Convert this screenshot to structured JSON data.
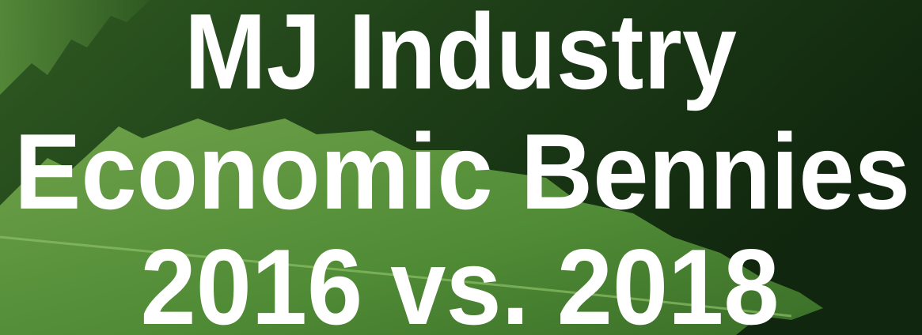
{
  "title_lines": [
    "MJ Industry",
    "Economic Bennies",
    "2016 vs. 2018"
  ]
}
